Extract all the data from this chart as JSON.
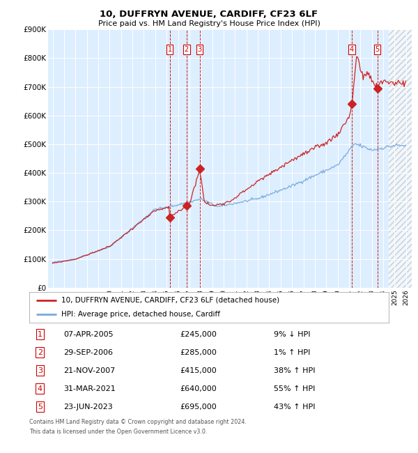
{
  "title": "10, DUFFRYN AVENUE, CARDIFF, CF23 6LF",
  "subtitle": "Price paid vs. HM Land Registry's House Price Index (HPI)",
  "legend_line1": "10, DUFFRYN AVENUE, CARDIFF, CF23 6LF (detached house)",
  "legend_line2": "HPI: Average price, detached house, Cardiff",
  "footer1": "Contains HM Land Registry data © Crown copyright and database right 2024.",
  "footer2": "This data is licensed under the Open Government Licence v3.0.",
  "tx_dates": [
    2005.27,
    2006.75,
    2007.9,
    2021.25,
    2023.48
  ],
  "tx_prices": [
    245000,
    285000,
    415000,
    640000,
    695000
  ],
  "tx_ids": [
    1,
    2,
    3,
    4,
    5
  ],
  "table_rows": [
    {
      "id": 1,
      "date": "07-APR-2005",
      "price": "£245,000",
      "pct": "9%",
      "dir": "↓",
      "label": "HPI"
    },
    {
      "id": 2,
      "date": "29-SEP-2006",
      "price": "£285,000",
      "pct": "1%",
      "dir": "↑",
      "label": "HPI"
    },
    {
      "id": 3,
      "date": "21-NOV-2007",
      "price": "£415,000",
      "pct": "38%",
      "dir": "↑",
      "label": "HPI"
    },
    {
      "id": 4,
      "date": "31-MAR-2021",
      "price": "£640,000",
      "pct": "55%",
      "dir": "↑",
      "label": "HPI"
    },
    {
      "id": 5,
      "date": "23-JUN-2023",
      "price": "£695,000",
      "pct": "43%",
      "dir": "↑",
      "label": "HPI"
    }
  ],
  "hpi_color": "#7aaadd",
  "price_color": "#cc2222",
  "dashed_color": "#cc0000",
  "bg_color": "#ddeeff",
  "ylim": [
    0,
    900000
  ],
  "ytick_vals": [
    0,
    100000,
    200000,
    300000,
    400000,
    500000,
    600000,
    700000,
    800000,
    900000
  ],
  "ytick_labels": [
    "£0",
    "£100K",
    "£200K",
    "£300K",
    "£400K",
    "£500K",
    "£600K",
    "£700K",
    "£800K",
    "£900K"
  ],
  "xlim_start": 1994.6,
  "xlim_end": 2026.5,
  "hatch_start": 2024.5
}
